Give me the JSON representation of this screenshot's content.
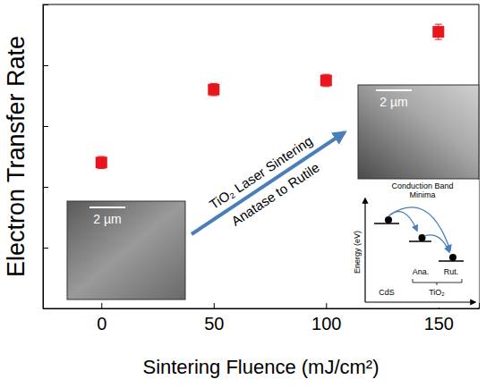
{
  "chart_data": {
    "type": "scatter",
    "x_label": "Sintering Fluence (mJ/cm²)",
    "y_label": "Electron Transfer Rate",
    "x": [
      0,
      50,
      100,
      150
    ],
    "values": [
      4.8,
      7.2,
      7.5,
      9.1
    ],
    "errors": [
      0.2,
      0.2,
      0.2,
      0.25
    ],
    "color": "#e8151b",
    "marker": "square",
    "xlim": [
      -26,
      168
    ],
    "xticks": [
      0,
      50,
      100,
      150
    ],
    "ylim": [
      0,
      10
    ],
    "yticks": [
      0,
      2,
      4,
      6,
      8,
      10
    ],
    "tick_labels": "x",
    "annotations": [
      "TiO₂ Laser Sintering",
      "Anatase to Rutile",
      "2 µm",
      "2 µm",
      "Conduction Band Minima",
      "Energy (eV)",
      "CdS",
      "Ana.",
      "Rut.",
      "TiO₂"
    ]
  }
}
